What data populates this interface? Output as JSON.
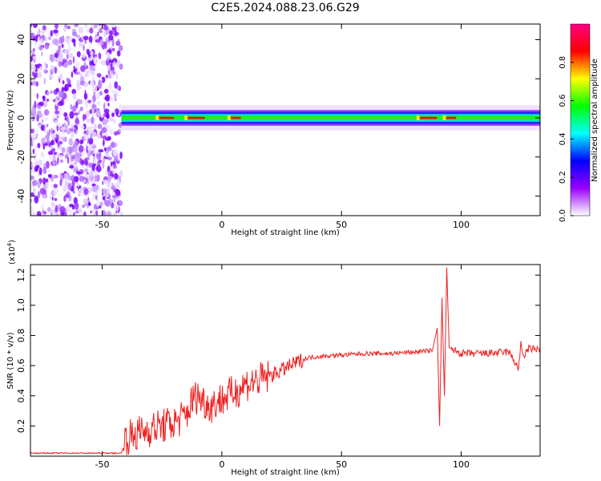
{
  "title": "C2E5.2024.088.23.06.G29",
  "chart_data": [
    {
      "type": "heatmap",
      "xlabel": "Height of straight line (km)",
      "ylabel": "Frequency (Hz)",
      "xlim": [
        -80,
        133
      ],
      "ylim": [
        -50,
        48
      ],
      "xticks": [
        -50,
        0,
        50,
        100
      ],
      "yticks": [
        -40,
        -20,
        0,
        20,
        40
      ],
      "noise_region_x": [
        -80,
        -42
      ],
      "band_center_hz": 0,
      "band_halfwidth_hz": 4,
      "high_amplitude_segments_km": [
        [
          -27,
          -20
        ],
        [
          -15,
          -7
        ],
        [
          3,
          8
        ],
        [
          82,
          90
        ],
        [
          93,
          98
        ]
      ],
      "colorbar": {
        "label": "Normalized spectral amplitude",
        "range": [
          0,
          1
        ],
        "ticks": [
          "0.0",
          "0.2",
          "0.4",
          "0.6",
          "0.8"
        ],
        "colors": [
          "#ffffff",
          "#9a00ff",
          "#0000ff",
          "#00ffff",
          "#00ff00",
          "#ffff00",
          "#ff0000",
          "#ff0080"
        ]
      }
    },
    {
      "type": "line",
      "xlabel": "Height of straight line (km)",
      "ylabel": "SNR (10 * v/v)",
      "y_multiplier_label": "(x10",
      "y_multiplier_exp": "4",
      "y_multiplier_close": ")",
      "xlim": [
        -80,
        133
      ],
      "ylim": [
        0,
        1.27
      ],
      "xticks": [
        -50,
        0,
        50,
        100
      ],
      "yticks": [
        "0.2",
        "0.4",
        "0.6",
        "0.8",
        "1.0",
        "1.2"
      ],
      "color": "#ee2222",
      "series": [
        {
          "x": [
            -80,
            -42,
            -40,
            -35,
            -30,
            -25,
            -20,
            -15,
            -12,
            -10,
            -5,
            0,
            5,
            10,
            15,
            20,
            25,
            30,
            35,
            40,
            50,
            60,
            70,
            80,
            88,
            90,
            91,
            92,
            93,
            94,
            95,
            100,
            110,
            120,
            124,
            125,
            126,
            128,
            133
          ],
          "y": [
            0.02,
            0.02,
            0.12,
            0.15,
            0.18,
            0.2,
            0.22,
            0.27,
            0.38,
            0.4,
            0.33,
            0.38,
            0.42,
            0.48,
            0.5,
            0.53,
            0.57,
            0.61,
            0.65,
            0.66,
            0.67,
            0.68,
            0.68,
            0.69,
            0.7,
            0.85,
            0.2,
            1.05,
            0.4,
            1.25,
            0.72,
            0.68,
            0.68,
            0.69,
            0.58,
            0.74,
            0.66,
            0.71,
            0.71
          ]
        }
      ]
    }
  ]
}
